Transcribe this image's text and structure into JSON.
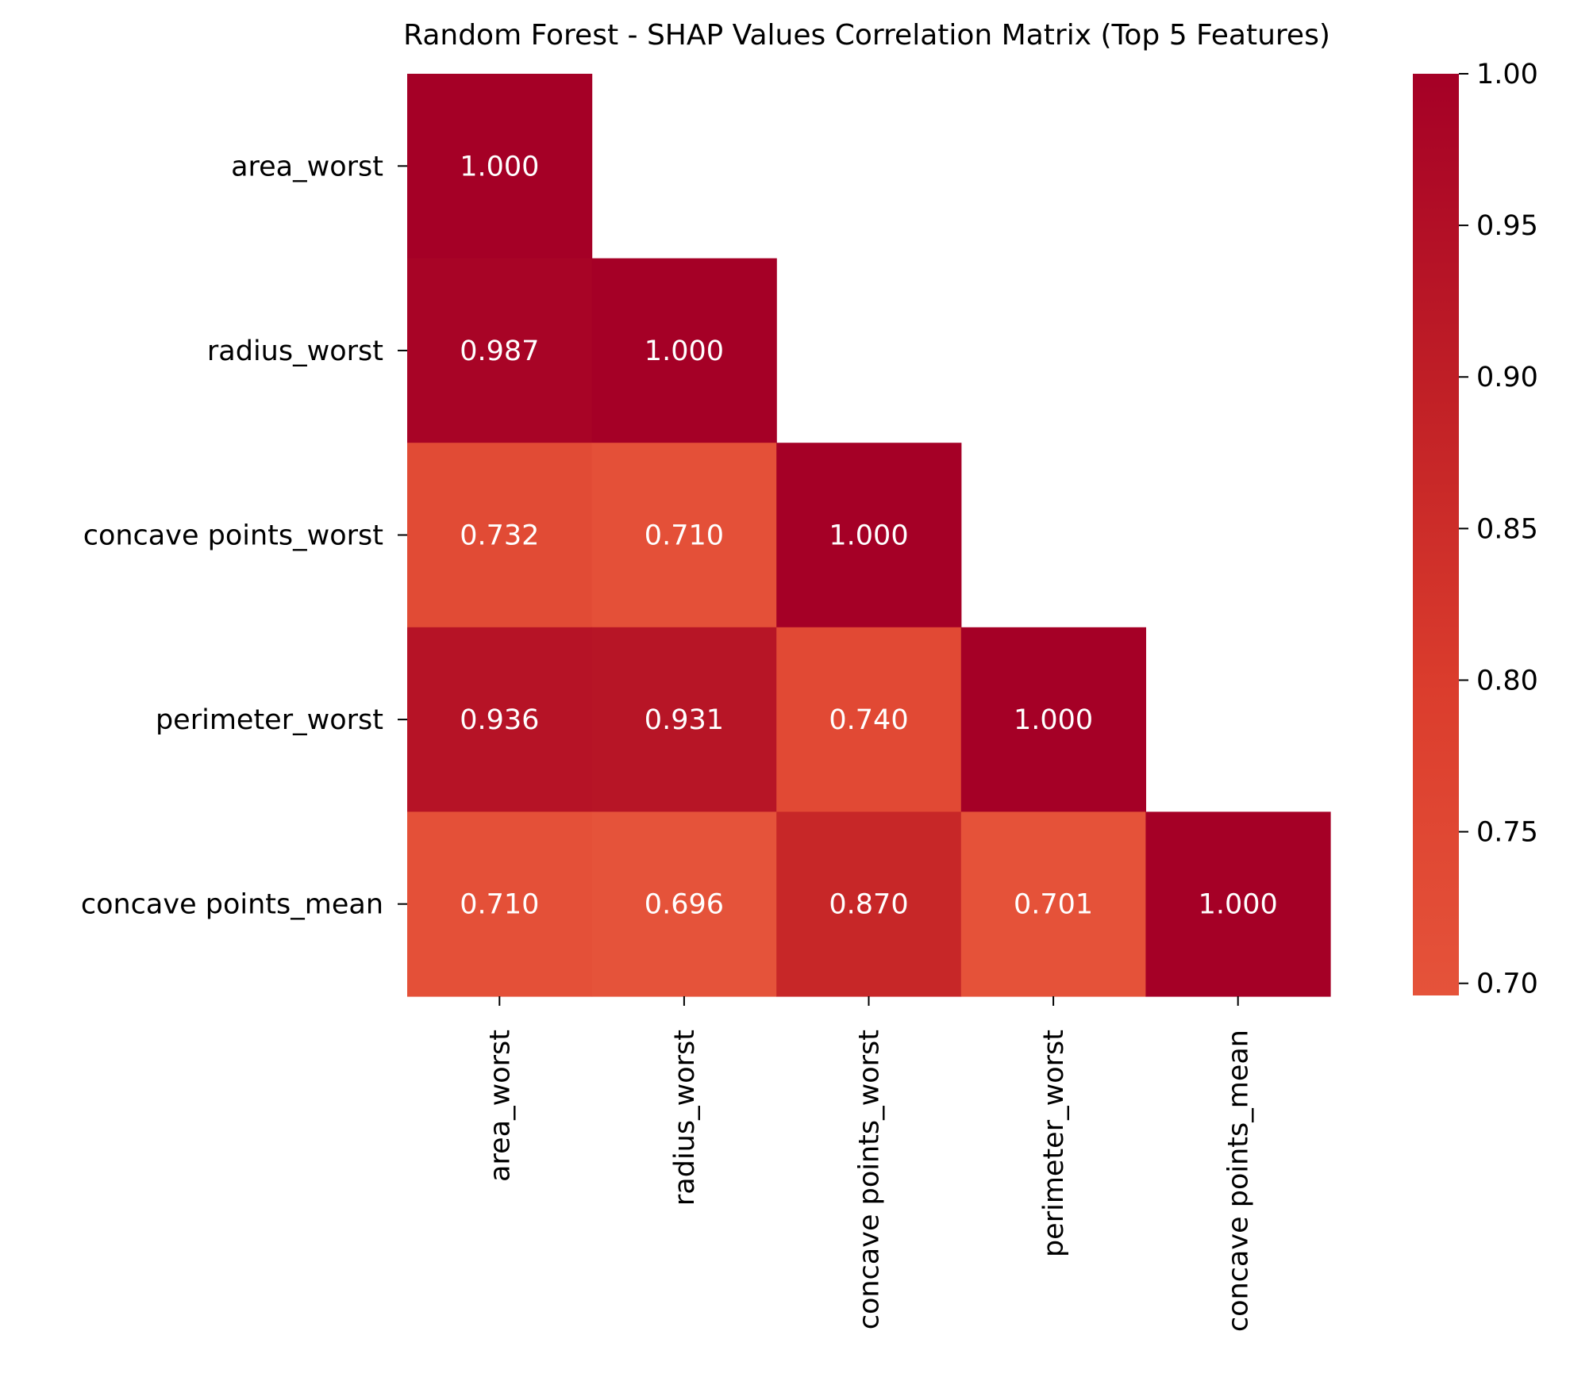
{
  "chart_data": {
    "type": "heatmap",
    "title": "Random Forest - SHAP Values Correlation Matrix (Top 5 Features)",
    "rows": [
      "area_worst",
      "radius_worst",
      "concave points_worst",
      "perimeter_worst",
      "concave points_mean"
    ],
    "columns": [
      "area_worst",
      "radius_worst",
      "concave points_worst",
      "perimeter_worst",
      "concave points_mean"
    ],
    "values": [
      [
        1.0,
        null,
        null,
        null,
        null
      ],
      [
        0.987,
        1.0,
        null,
        null,
        null
      ],
      [
        0.732,
        0.71,
        1.0,
        null,
        null
      ],
      [
        0.936,
        0.931,
        0.74,
        1.0,
        null
      ],
      [
        0.71,
        0.696,
        0.87,
        0.701,
        1.0
      ]
    ],
    "labels": [
      [
        "1.000",
        null,
        null,
        null,
        null
      ],
      [
        "0.987",
        "1.000",
        null,
        null,
        null
      ],
      [
        "0.732",
        "0.710",
        "1.000",
        null,
        null
      ],
      [
        "0.936",
        "0.931",
        "0.740",
        "1.000",
        null
      ],
      [
        "0.710",
        "0.696",
        "0.870",
        "0.701",
        "1.000"
      ]
    ],
    "mask": "upper-triangle",
    "colormap": "Reds",
    "color_range": [
      0.696,
      1.0
    ],
    "colorbar": {
      "ticks": [
        0.7,
        0.75,
        0.8,
        0.85,
        0.9,
        0.95,
        1.0
      ],
      "tick_labels": [
        "0.70",
        "0.75",
        "0.80",
        "0.85",
        "0.90",
        "0.95",
        "1.00"
      ]
    },
    "colors": {
      "low": "#e34a33",
      "high": "#a50026",
      "cell_text": "#ffffff"
    },
    "grid": false
  }
}
